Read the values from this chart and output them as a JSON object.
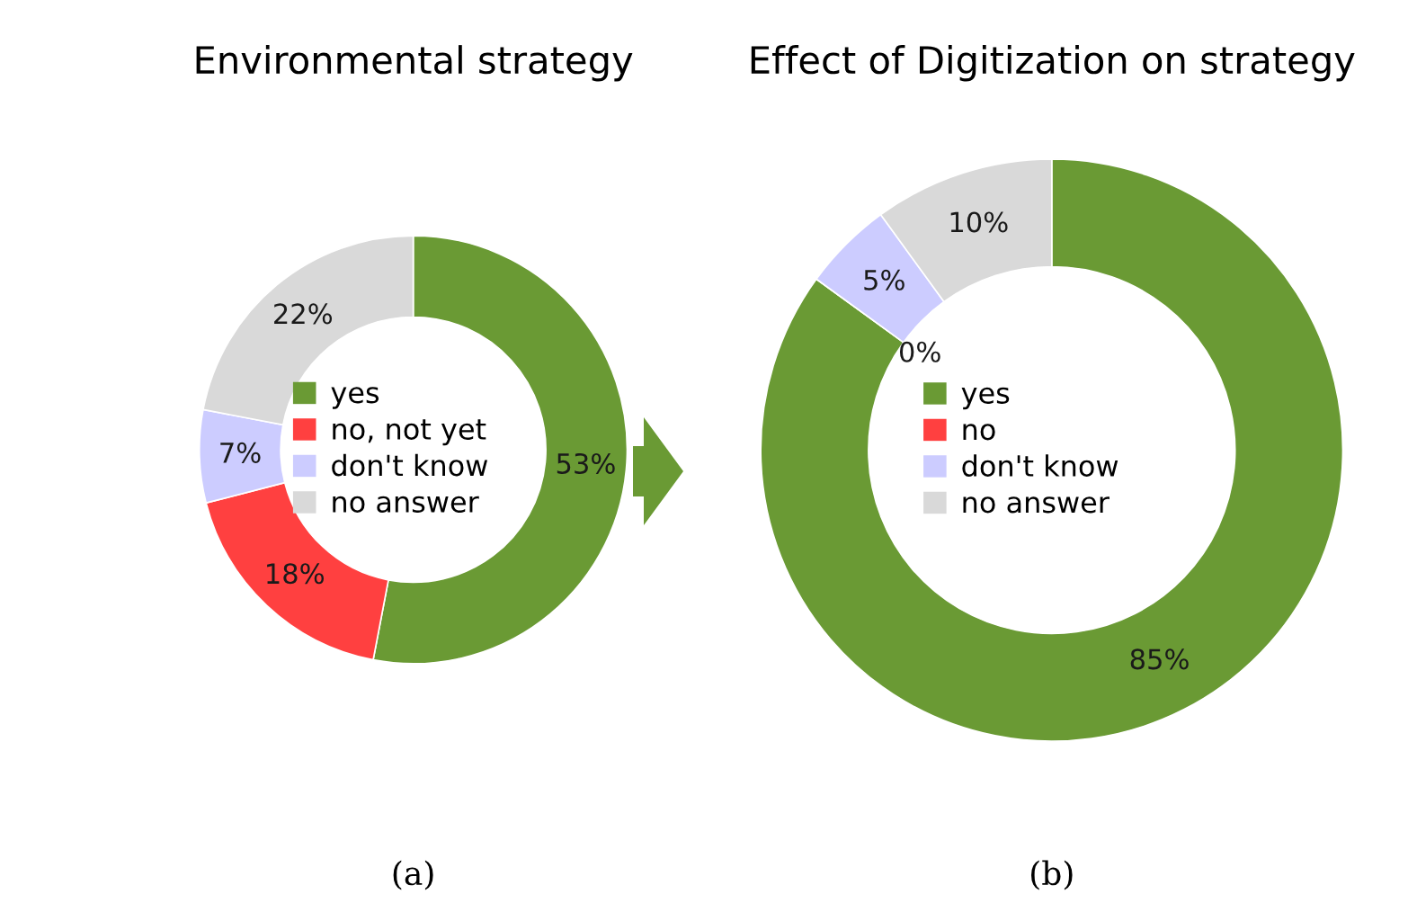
{
  "chart_data": [
    {
      "type": "donut",
      "title": "Environmental strategy",
      "categories": [
        "yes",
        "no, not yet",
        "don't know",
        "no answer"
      ],
      "values": [
        53,
        18,
        7,
        22
      ],
      "colors": [
        "#6a9a34",
        "#ff4040",
        "#ccccff",
        "#d9d9d9"
      ],
      "value_labels": [
        "53%",
        "18%",
        "7%",
        "22%"
      ],
      "legend": "center",
      "annotations": [
        "(a)"
      ]
    },
    {
      "type": "donut",
      "title": "Effect of Digitization on strategy",
      "categories": [
        "yes",
        "no",
        "don't know",
        "no answer"
      ],
      "values": [
        85,
        0,
        5,
        10
      ],
      "colors": [
        "#6a9a34",
        "#ff4040",
        "#ccccff",
        "#d9d9d9"
      ],
      "value_labels": [
        "85%",
        "0%",
        "5%",
        "10%"
      ],
      "legend": "center",
      "annotations": [
        "(b)"
      ]
    }
  ]
}
